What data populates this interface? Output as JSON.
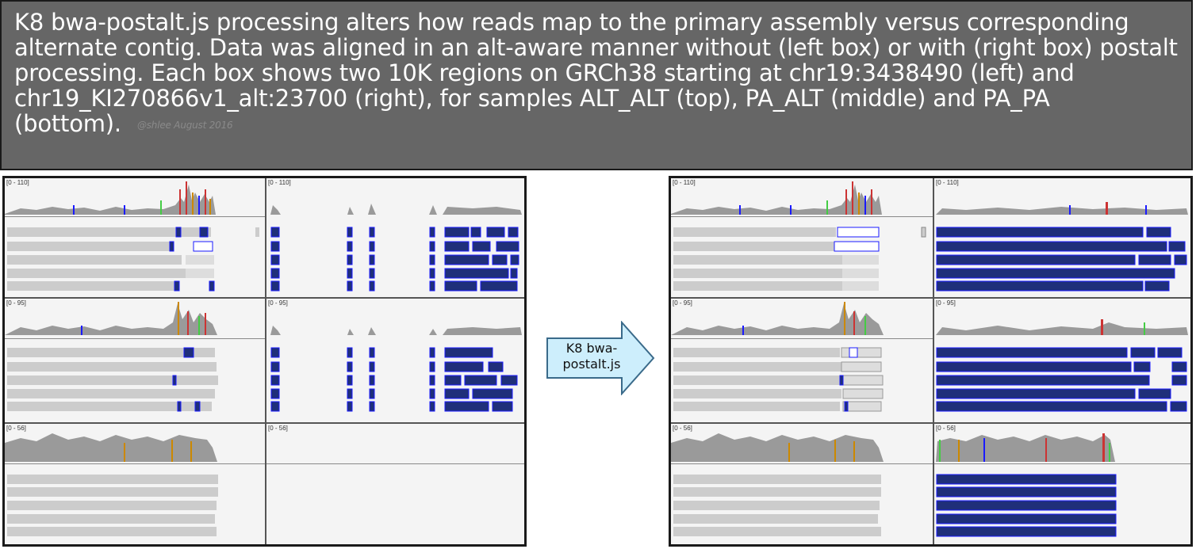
{
  "caption": {
    "text": "K8 bwa-postalt.js processing alters how reads map to the primary assembly versus corresponding alternate contig. Data was aligned in an alt-aware manner without (left box) or with (right box) postalt processing. Each box shows two 10K regions on GRCh38 starting at chr19:3438490 (left) and chr19_KI270866v1_alt:23700 (right), for samples ALT_ALT (top), PA_ALT (middle) and PA_PA (bottom).",
    "credit": "@shlee August 2016"
  },
  "arrow": {
    "label": "K8 bwa-postalt.js"
  },
  "colors": {
    "caption_bg": "#666666",
    "coverage_gray": "#9a9a9a",
    "read_gray": "#cccccc",
    "read_blue": "#1f2f7a",
    "blue_border": "#1a1aff",
    "arrow_fill": "#cdeefc"
  },
  "boxes": [
    {
      "name": "without postalt",
      "rows": [
        {
          "sample": "ALT_ALT",
          "left_range": "[0 - 110]",
          "right_range": "[0 - 110]"
        },
        {
          "sample": "PA_ALT",
          "left_range": "[0 - 95]",
          "right_range": "[0 - 95]"
        },
        {
          "sample": "PA_PA",
          "left_range": "[0 - 56]",
          "right_range": "[0 - 56]"
        }
      ]
    },
    {
      "name": "with postalt",
      "rows": [
        {
          "sample": "ALT_ALT",
          "left_range": "[0 - 110]",
          "right_range": "[0 - 110]"
        },
        {
          "sample": "PA_ALT",
          "left_range": "[0 - 95]",
          "right_range": "[0 - 95]"
        },
        {
          "sample": "PA_PA",
          "left_range": "[0 - 56]",
          "right_range": "[0 - 56]"
        }
      ]
    }
  ]
}
